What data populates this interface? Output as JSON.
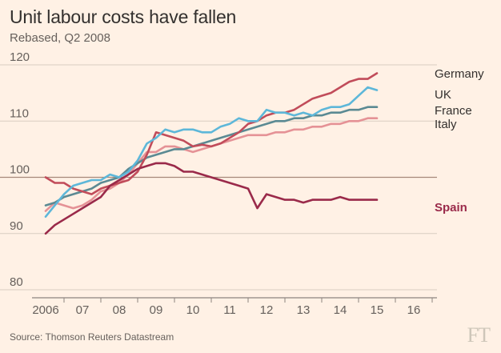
{
  "header": {
    "title": "Unit labour costs have fallen",
    "subtitle": "Rebased, Q2 2008"
  },
  "footer": {
    "source": "Source: Thomson Reuters Datastream",
    "logo": "FT"
  },
  "colors": {
    "Germany": "#c14c5a",
    "UK": "#5db7d9",
    "France": "#5b8a93",
    "Italy": "#e59296",
    "Spain": "#9a2a4a",
    "grid": "#d9cdc1",
    "baseline": "#a6887a",
    "text": "#33302e"
  },
  "chart_data": {
    "type": "line",
    "title": "Unit labour costs have fallen",
    "subtitle": "Rebased, Q2 2008",
    "xlabel": "",
    "ylabel": "",
    "ylim": [
      80,
      120
    ],
    "yticks": [
      80,
      90,
      100,
      110,
      120
    ],
    "grid": true,
    "x_start": 2006.0,
    "x_step": 0.25,
    "xlim": [
      2005.75,
      2017.0
    ],
    "xticks": [
      {
        "year": 2006,
        "label": "2006"
      },
      {
        "year": 2007,
        "label": "07"
      },
      {
        "year": 2008,
        "label": "08"
      },
      {
        "year": 2009,
        "label": "09"
      },
      {
        "year": 2010,
        "label": "10"
      },
      {
        "year": 2011,
        "label": "11"
      },
      {
        "year": 2012,
        "label": "12"
      },
      {
        "year": 2013,
        "label": "13"
      },
      {
        "year": 2014,
        "label": "14"
      },
      {
        "year": 2015,
        "label": "15"
      },
      {
        "year": 2016,
        "label": "16"
      }
    ],
    "series": [
      {
        "name": "Germany",
        "label": "Germany",
        "values": [
          100.0,
          99.0,
          99.0,
          98.0,
          97.5,
          97.0,
          98.0,
          98.5,
          99.0,
          99.5,
          101.0,
          104.0,
          108.0,
          107.5,
          107.0,
          106.5,
          105.5,
          105.8,
          105.5,
          106.0,
          107.0,
          108.0,
          109.5,
          110.0,
          111.0,
          111.5,
          111.5,
          112.0,
          113.0,
          114.0,
          114.5,
          115.0,
          116.0,
          117.0,
          117.5,
          117.5,
          118.5
        ]
      },
      {
        "name": "UK",
        "label": "UK",
        "values": [
          93.0,
          95.0,
          97.0,
          98.5,
          99.0,
          99.5,
          99.5,
          100.5,
          100.0,
          101.0,
          103.0,
          106.0,
          107.0,
          108.5,
          108.0,
          108.5,
          108.5,
          108.0,
          108.0,
          109.0,
          109.5,
          110.5,
          110.0,
          110.0,
          112.0,
          111.5,
          111.5,
          111.0,
          111.5,
          111.0,
          112.0,
          112.5,
          112.5,
          113.0,
          114.5,
          116.0,
          115.5
        ]
      },
      {
        "name": "France",
        "label": "France",
        "values": [
          95.0,
          95.5,
          96.5,
          97.0,
          97.5,
          98.0,
          99.0,
          99.5,
          100.0,
          101.5,
          102.5,
          103.5,
          104.0,
          104.5,
          105.0,
          105.0,
          105.5,
          106.0,
          106.5,
          107.0,
          107.5,
          108.0,
          108.5,
          109.0,
          109.5,
          110.0,
          110.0,
          110.5,
          110.5,
          111.0,
          111.0,
          111.5,
          111.5,
          112.0,
          112.0,
          112.5,
          112.5
        ]
      },
      {
        "name": "Italy",
        "label": "Italy",
        "values": [
          94.0,
          95.5,
          95.0,
          94.5,
          95.0,
          96.0,
          97.5,
          98.0,
          99.0,
          100.5,
          102.5,
          104.5,
          104.5,
          105.5,
          105.5,
          105.0,
          104.5,
          105.0,
          105.5,
          106.0,
          106.5,
          107.0,
          107.5,
          107.5,
          107.5,
          108.0,
          108.0,
          108.5,
          108.5,
          109.0,
          109.0,
          109.5,
          109.5,
          110.0,
          110.0,
          110.5,
          110.5
        ]
      },
      {
        "name": "Spain",
        "label": "Spain",
        "values": [
          90.0,
          91.5,
          92.5,
          93.5,
          94.5,
          95.5,
          96.5,
          98.5,
          99.5,
          100.5,
          101.5,
          102.0,
          102.5,
          102.5,
          102.0,
          101.0,
          101.0,
          100.5,
          100.0,
          99.5,
          99.0,
          98.5,
          98.0,
          94.5,
          97.0,
          96.5,
          96.0,
          96.0,
          95.5,
          96.0,
          96.0,
          96.0,
          96.5,
          96.0,
          96.0,
          96.0,
          96.0
        ]
      }
    ]
  }
}
